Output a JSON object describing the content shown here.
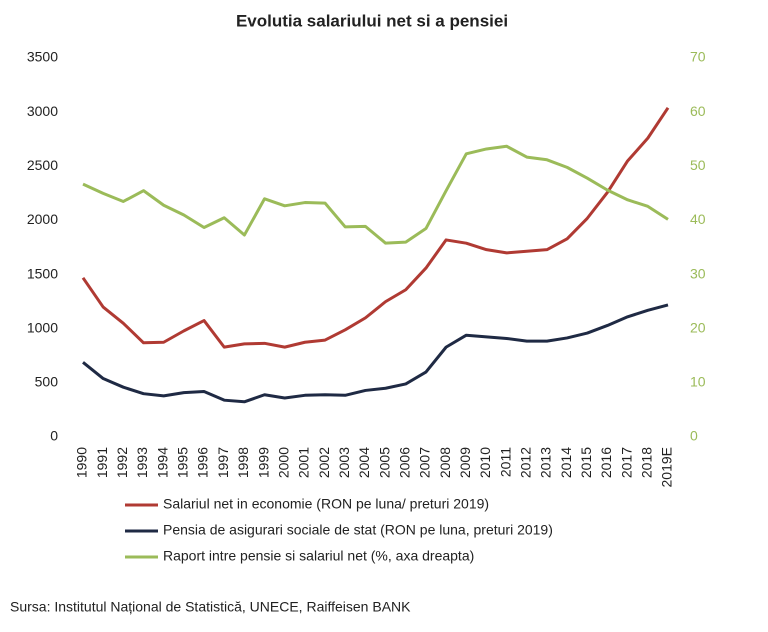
{
  "chart_data": {
    "type": "line",
    "title": "Evolutia salariului net si a pensiei",
    "source": "Sursa: Institutul Național de Statistică, UNECE, Raiffeisen BANK",
    "categories": [
      "1990",
      "1991",
      "1992",
      "1993",
      "1994",
      "1995",
      "1996",
      "1997",
      "1998",
      "1999",
      "2000",
      "2001",
      "2002",
      "2003",
      "2004",
      "2005",
      "2006",
      "2007",
      "2008",
      "2009",
      "2010",
      "2011",
      "2012",
      "2013",
      "2014",
      "2015",
      "2016",
      "2017",
      "2018",
      "2019E"
    ],
    "series": [
      {
        "name": "Salariul net in economie (RON pe luna/ preturi 2019)",
        "color": "#b03a33",
        "values": [
          1470,
          1200,
          1050,
          870,
          875,
          980,
          1075,
          830,
          860,
          865,
          830,
          875,
          895,
          990,
          1100,
          1250,
          1360,
          1560,
          1820,
          1790,
          1730,
          1700,
          1715,
          1730,
          1830,
          2020,
          2260,
          2550,
          2760,
          3040
        ]
      },
      {
        "name": "Pensia de asigurari sociale de stat (RON pe luna, preturi 2019)",
        "color": "#1f2a44",
        "values": [
          690,
          540,
          460,
          400,
          380,
          410,
          420,
          340,
          325,
          390,
          360,
          385,
          390,
          385,
          430,
          450,
          490,
          600,
          830,
          940,
          925,
          910,
          885,
          885,
          915,
          960,
          1030,
          1110,
          1170,
          1220
        ]
      },
      {
        "name": "Raport intre pensie si salariul net (%, axa dreapta)",
        "color": "#9bbb59",
        "axis": "y2",
        "values": [
          46.7,
          45,
          43.5,
          45.5,
          42.8,
          41,
          38.7,
          40.5,
          37.3,
          44,
          42.7,
          43.3,
          43.2,
          38.8,
          38.9,
          35.8,
          36,
          38.5,
          45.5,
          52.3,
          53.2,
          53.7,
          51.7,
          51.2,
          49.8,
          47.8,
          45.6,
          43.8,
          42.6,
          40.2
        ]
      }
    ],
    "ylim": [
      0,
      3500
    ],
    "yticks": [
      0,
      500,
      1000,
      1500,
      2000,
      2500,
      3000,
      3500
    ],
    "y2lim": [
      0,
      70
    ],
    "y2ticks": [
      0,
      10,
      20,
      30,
      40,
      50,
      60,
      70
    ],
    "grid": false
  }
}
